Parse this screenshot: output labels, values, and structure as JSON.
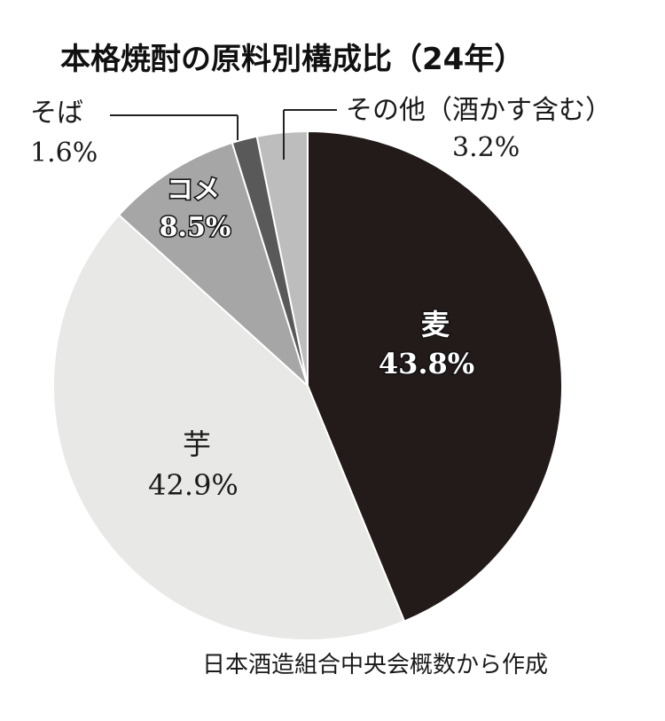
{
  "chart_data": {
    "type": "pie",
    "title": "本格焼酎の原料別構成比（24年）",
    "source": "日本酒造組合中央会概数から作成",
    "slices": [
      {
        "name": "麦",
        "value": 43.8,
        "value_label": "43.8%",
        "color": "#231a1a"
      },
      {
        "name": "芋",
        "value": 42.9,
        "value_label": "42.9%",
        "color": "#e8e8e6"
      },
      {
        "name": "コメ",
        "value": 8.5,
        "value_label": "8.5%",
        "color": "#a6a6a6"
      },
      {
        "name": "そば",
        "value": 1.6,
        "value_label": "1.6%",
        "color": "#595959"
      },
      {
        "name": "その他（酒かす含む）",
        "value": 3.2,
        "value_label": "3.2%",
        "color": "#bdbdbd"
      }
    ]
  }
}
